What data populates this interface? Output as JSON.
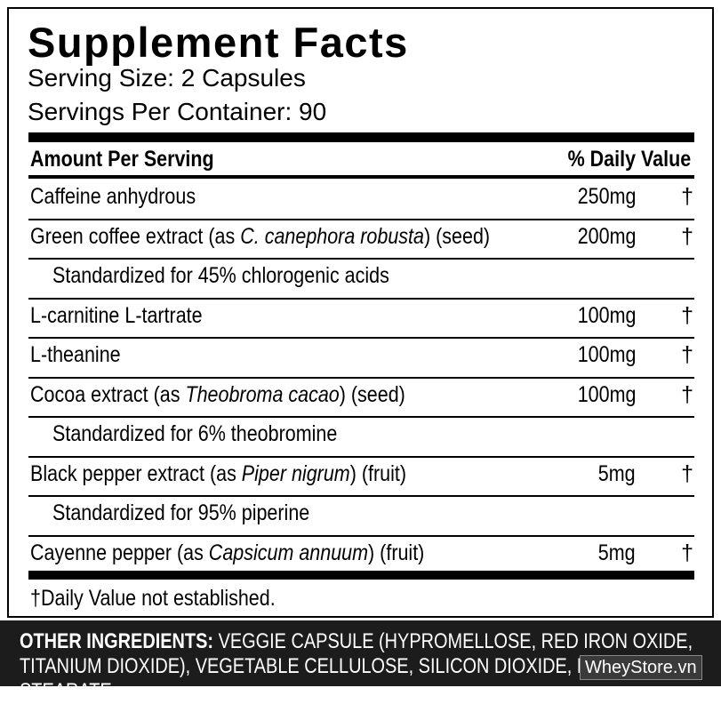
{
  "header": {
    "title": "Supplement Facts",
    "serving_size": "Serving Size: 2 Capsules",
    "servings_per_container": "Servings Per Container: 90"
  },
  "table": {
    "columns": [
      "Amount Per Serving",
      "% Daily Value"
    ],
    "rows": [
      {
        "name": [
          {
            "text": "Caffeine anhydrous",
            "italic": false
          }
        ],
        "amount": "250mg",
        "dv": "†"
      },
      {
        "name": [
          {
            "text": "Green coffee extract (as ",
            "italic": false
          },
          {
            "text": "C. canephora robusta",
            "italic": true
          },
          {
            "text": ") (seed)",
            "italic": false
          }
        ],
        "amount": "200mg",
        "dv": "†"
      },
      {
        "sub": "Standardized for 45% chlorogenic acids"
      },
      {
        "name": [
          {
            "text": "L-carnitine L-tartrate",
            "italic": false
          }
        ],
        "amount": "100mg",
        "dv": "†"
      },
      {
        "name": [
          {
            "text": "L-theanine",
            "italic": false
          }
        ],
        "amount": "100mg",
        "dv": "†"
      },
      {
        "name": [
          {
            "text": "Cocoa extract (as ",
            "italic": false
          },
          {
            "text": "Theobroma cacao",
            "italic": true
          },
          {
            "text": ") (seed)",
            "italic": false
          }
        ],
        "amount": "100mg",
        "dv": "†"
      },
      {
        "sub": "Standardized for 6% theobromine"
      },
      {
        "name": [
          {
            "text": "Black pepper extract (as ",
            "italic": false
          },
          {
            "text": "Piper nigrum",
            "italic": true
          },
          {
            "text": ") (fruit)",
            "italic": false
          }
        ],
        "amount": "5mg",
        "dv": "†"
      },
      {
        "sub": "Standardized for 95% piperine"
      },
      {
        "name": [
          {
            "text": "Cayenne pepper (as ",
            "italic": false
          },
          {
            "text": "Capsicum annuum",
            "italic": true
          },
          {
            "text": ") (fruit)",
            "italic": false
          }
        ],
        "amount": "5mg",
        "dv": "†"
      }
    ]
  },
  "footnote": "†Daily Value not established.",
  "other_ingredients": {
    "label": "OTHER INGREDIENTS:",
    "text": " VEGGIE CAPSULE (HYPROMELLOSE, RED IRON OXIDE, TITANIUM DIOXIDE), VEGETABLE CELLULOSE, SILICON DIOXIDE, MAGNESIUM STEARATE."
  },
  "watermark": "WheyStore.vn"
}
